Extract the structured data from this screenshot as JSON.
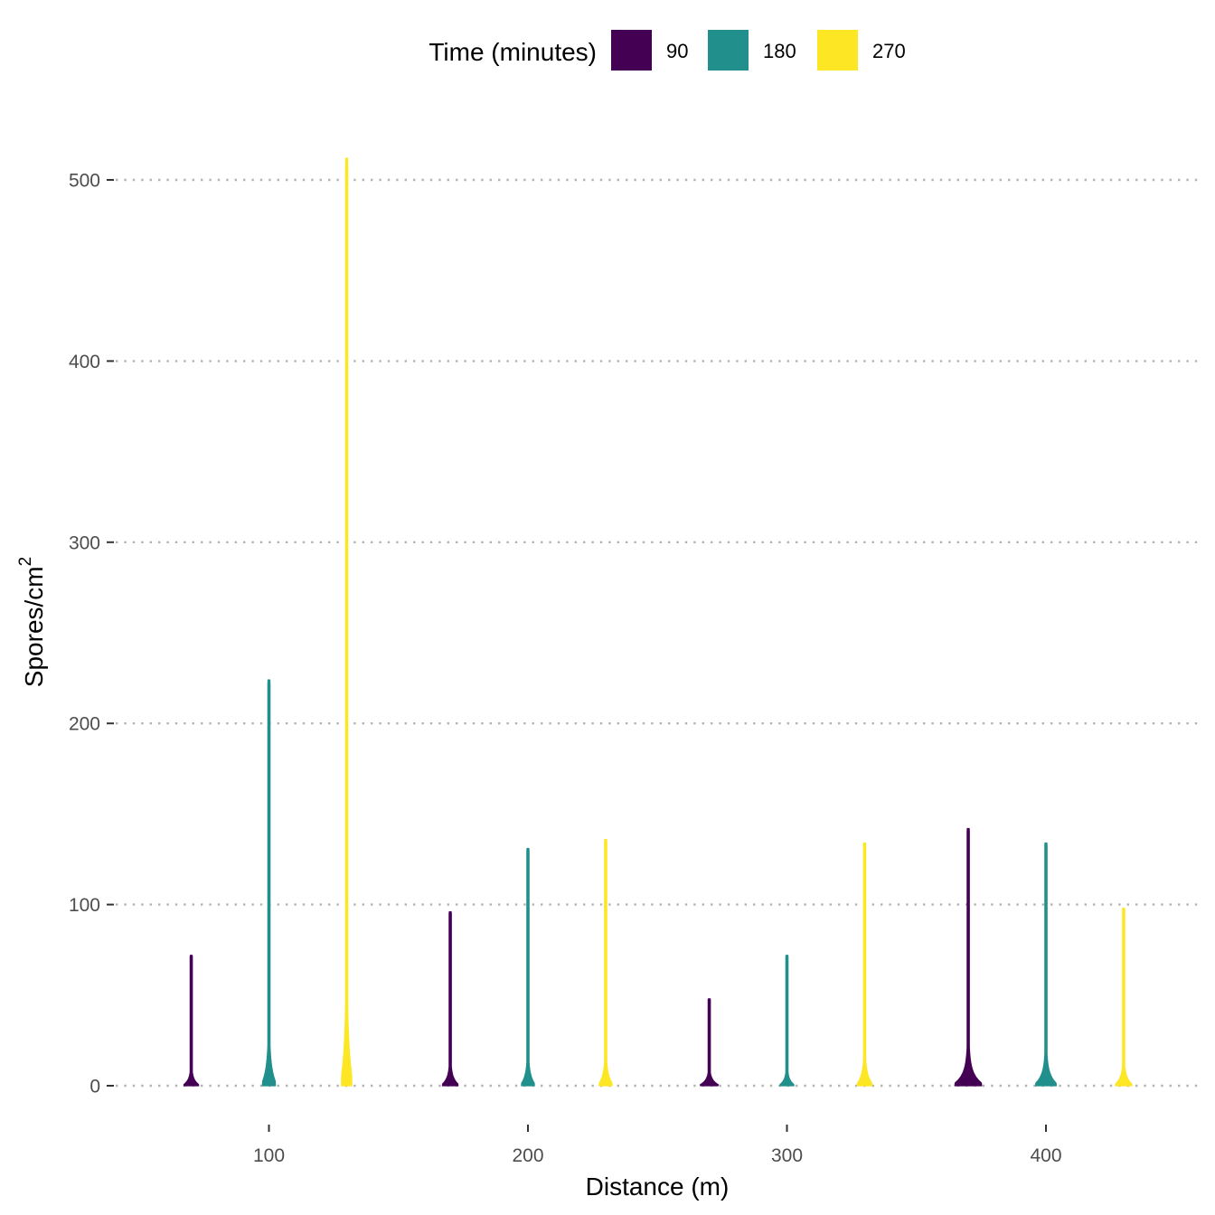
{
  "chart_data": {
    "type": "violin",
    "title": "",
    "xlabel": "Distance (m)",
    "ylabel_main": "Spores/cm",
    "ylabel_superscript": "2",
    "xlim": [
      45,
      460
    ],
    "ylim": [
      -30,
      515
    ],
    "x_ticks": [
      100,
      200,
      300,
      400
    ],
    "x_tick_labels": [
      "100",
      "200",
      "300",
      "400"
    ],
    "y_ticks": [
      0,
      100,
      200,
      300,
      400,
      500
    ],
    "y_tick_labels": [
      "0",
      "100",
      "200",
      "300",
      "400",
      "500"
    ],
    "grid": "horizontal dotted major lines",
    "legend": {
      "title": "Time (minutes)",
      "placement": "top",
      "entries": [
        {
          "label": "90",
          "color": "#440154"
        },
        {
          "label": "180",
          "color": "#21908C"
        },
        {
          "label": "270",
          "color": "#FDE725"
        }
      ]
    },
    "series": [
      {
        "time": "90",
        "distance": 100,
        "x": 70,
        "max": 72,
        "max_half_width": 8.5,
        "color": "#440154"
      },
      {
        "time": "180",
        "distance": 100,
        "x": 100,
        "max": 224,
        "max_half_width": 7.5,
        "color": "#21908C"
      },
      {
        "time": "270",
        "distance": 100,
        "x": 130,
        "max": 512,
        "max_half_width": 6,
        "color": "#FDE725"
      },
      {
        "time": "90",
        "distance": 200,
        "x": 170,
        "max": 96,
        "max_half_width": 9,
        "color": "#440154"
      },
      {
        "time": "180",
        "distance": 200,
        "x": 200,
        "max": 131,
        "max_half_width": 7.5,
        "color": "#21908C"
      },
      {
        "time": "270",
        "distance": 200,
        "x": 230,
        "max": 136,
        "max_half_width": 7.5,
        "color": "#FDE725"
      },
      {
        "time": "90",
        "distance": 300,
        "x": 270,
        "max": 48,
        "max_half_width": 10,
        "color": "#440154"
      },
      {
        "time": "180",
        "distance": 300,
        "x": 300,
        "max": 72,
        "max_half_width": 8,
        "color": "#21908C"
      },
      {
        "time": "270",
        "distance": 300,
        "x": 330,
        "max": 134,
        "max_half_width": 8.5,
        "color": "#FDE725"
      },
      {
        "time": "90",
        "distance": 400,
        "x": 370,
        "max": 142,
        "max_half_width": 15.5,
        "color": "#440154"
      },
      {
        "time": "180",
        "distance": 400,
        "x": 400,
        "max": 134,
        "max_half_width": 12,
        "color": "#21908C"
      },
      {
        "time": "270",
        "distance": 400,
        "x": 430,
        "max": 98,
        "max_half_width": 9.5,
        "color": "#FDE725"
      }
    ]
  }
}
